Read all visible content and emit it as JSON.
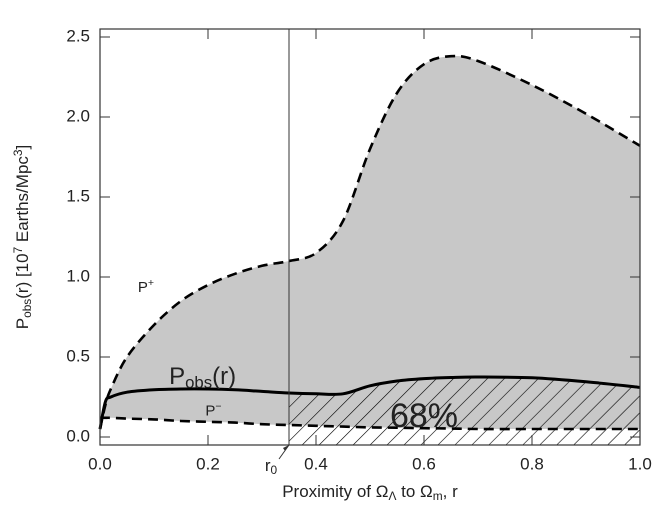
{
  "chart_data": {
    "type": "line",
    "xlabel": [
      {
        "text": "Proximity of Ω"
      },
      {
        "text": "Λ",
        "sub": true
      },
      {
        "text": " to Ω"
      },
      {
        "text": "m",
        "sub": true
      },
      {
        "text": ", r"
      }
    ],
    "ylabel": [
      {
        "text": "P"
      },
      {
        "text": "obs",
        "sub": true
      },
      {
        "text": "(r) [10"
      },
      {
        "text": "7",
        "sup": true
      },
      {
        "text": " Earths/Mpc"
      },
      {
        "text": "3",
        "sup": true
      },
      {
        "text": "]"
      }
    ],
    "xlim": [
      0,
      1
    ],
    "ylim": [
      -0.05,
      2.55
    ],
    "xticks": [
      {
        "value": 0,
        "label": "0.0"
      },
      {
        "value": 0.2,
        "label": "0.2"
      },
      {
        "value": 0.4,
        "label": "0.4"
      },
      {
        "value": 0.6,
        "label": "0.6"
      },
      {
        "value": 0.8,
        "label": "0.8"
      },
      {
        "value": 1,
        "label": "1.0"
      }
    ],
    "yticks": [
      {
        "value": 0,
        "label": "0.0"
      },
      {
        "value": 0.5,
        "label": "0.5"
      },
      {
        "value": 1,
        "label": "1.0"
      },
      {
        "value": 1.5,
        "label": "1.5"
      },
      {
        "value": 2,
        "label": "2.0"
      },
      {
        "value": 2.5,
        "label": "2.5"
      }
    ],
    "x": [
      0,
      0.01,
      0.02,
      0.05,
      0.1,
      0.15,
      0.2,
      0.25,
      0.3,
      0.35,
      0.4,
      0.45,
      0.5,
      0.55,
      0.6,
      0.65,
      0.7,
      0.8,
      0.9,
      1.0
    ],
    "series": [
      {
        "label": [
          {
            "text": "P"
          },
          {
            "text": "+",
            "sup": true
          }
        ],
        "dashed": true,
        "color": "#000000",
        "values": [
          0.05,
          0.2,
          0.3,
          0.5,
          0.7,
          0.85,
          0.95,
          1.02,
          1.07,
          1.1,
          1.15,
          1.35,
          1.8,
          2.15,
          2.33,
          2.38,
          2.35,
          2.2,
          2.02,
          1.82
        ]
      },
      {
        "label": [
          {
            "text": "P"
          },
          {
            "text": "obs",
            "sub": true
          },
          {
            "text": "(r)"
          }
        ],
        "dashed": false,
        "color": "#000000",
        "values": [
          0.05,
          0.22,
          0.25,
          0.28,
          0.295,
          0.3,
          0.3,
          0.295,
          0.285,
          0.275,
          0.27,
          0.27,
          0.32,
          0.35,
          0.365,
          0.372,
          0.375,
          0.37,
          0.345,
          0.31
        ]
      },
      {
        "label": [
          {
            "text": "P"
          },
          {
            "text": "−",
            "sup": true
          }
        ],
        "dashed": true,
        "color": "#000000",
        "values": [
          0.12,
          0.12,
          0.12,
          0.115,
          0.11,
          0.1,
          0.095,
          0.09,
          0.08,
          0.075,
          0.07,
          0.065,
          0.06,
          0.058,
          0.055,
          0.053,
          0.05,
          0.05,
          0.05,
          0.05
        ]
      }
    ],
    "band_color": "#c8c8c8",
    "r0": {
      "value": 0.35,
      "label": [
        {
          "text": "r"
        },
        {
          "text": "0",
          "sub": true
        }
      ]
    },
    "hatched_label": "68%"
  }
}
